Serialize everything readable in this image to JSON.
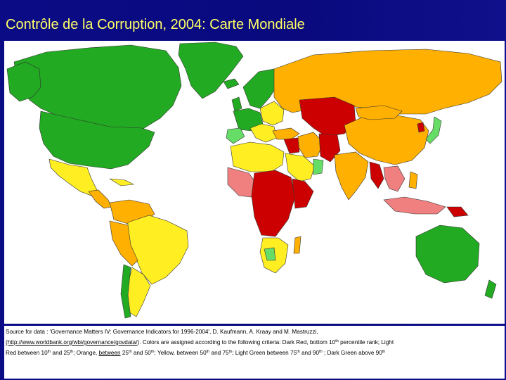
{
  "slide": {
    "title": "Contrôle de la Corruption, 2004: Carte Mondiale"
  },
  "caption": {
    "source_prefix": "Source for data : 'Governance Matters IV: Governance Indicators for 1996-2004', D. Kaufmann, A. Kraay and M. Mastruzzi,",
    "link_text": "(http://www.worldbank.org/wbi/governance/govdata/",
    "link_suffix": ").",
    "criteria_intro": "Colors are assigned according to the following criteria: Dark Red, bottom 10",
    "sup_th": "th",
    "criteria_part1": "percentile rank; Light",
    "criteria_part2": "Red between 10",
    "criteria_part3": "and 25",
    "criteria_part4": "; Orange,",
    "criteria_between": "between",
    "criteria_part5": "25",
    "criteria_part6": "and 50",
    "criteria_part7": "; Yellow, between 50",
    "criteria_part8": "and 75",
    "criteria_part9": "; Light  Green between 75",
    "criteria_part10": "and 90",
    "criteria_part11": "; Dark Green above 90"
  },
  "legend_colors": {
    "dark_red": "#cc0000",
    "light_red": "#f08080",
    "orange": "#ffb000",
    "yellow": "#ffee22",
    "light_green": "#66dd66",
    "dark_green": "#22aa22"
  }
}
